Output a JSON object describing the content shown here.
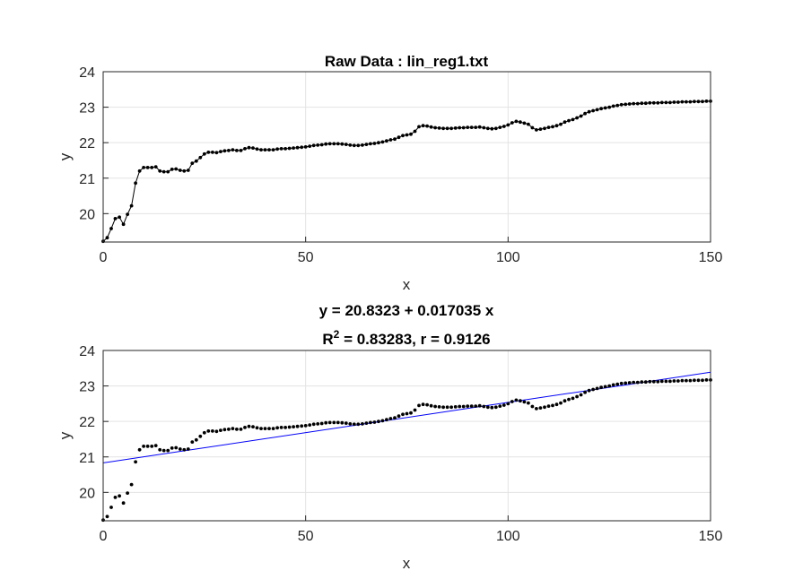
{
  "chart_data": [
    {
      "type": "line",
      "title": "Raw Data : lin_reg1.txt",
      "xlabel": "x",
      "ylabel": "y",
      "xlim": [
        0,
        150
      ],
      "ylim": [
        19.2,
        24
      ],
      "xticks": [
        "0",
        "50",
        "100",
        "150"
      ],
      "yticks": [
        "20",
        "21",
        "22",
        "23",
        "24"
      ],
      "grid": true,
      "markers": true,
      "series": [
        {
          "x": [
            0,
            1,
            2,
            3,
            4,
            5,
            6,
            7,
            8,
            9,
            10,
            11,
            12,
            13,
            14,
            15,
            16,
            17,
            18,
            19,
            20,
            21,
            22,
            23,
            24,
            25,
            26,
            27,
            28,
            29,
            30,
            31,
            32,
            33,
            34,
            35,
            36,
            37,
            38,
            39,
            40,
            41,
            42,
            43,
            44,
            45,
            46,
            47,
            48,
            49,
            50,
            51,
            52,
            53,
            54,
            55,
            56,
            57,
            58,
            59,
            60,
            61,
            62,
            63,
            64,
            65,
            66,
            67,
            68,
            69,
            70,
            71,
            72,
            73,
            74,
            75,
            76,
            77,
            78,
            79,
            80,
            81,
            82,
            83,
            84,
            85,
            86,
            87,
            88,
            89,
            90,
            91,
            92,
            93,
            94,
            95,
            96,
            97,
            98,
            99,
            100,
            101,
            102,
            103,
            104,
            105,
            106,
            107,
            108,
            109,
            110,
            111,
            112,
            113,
            114,
            115,
            116,
            117,
            118,
            119,
            120,
            121,
            122,
            123,
            124,
            125,
            126,
            127,
            128,
            129,
            130,
            131,
            132,
            133,
            134,
            135,
            136,
            137,
            138,
            139,
            140,
            141,
            142,
            143,
            144,
            145,
            146,
            147,
            148,
            149,
            150
          ],
          "y": [
            19.22,
            19.32,
            19.58,
            19.86,
            19.9,
            19.7,
            19.98,
            20.22,
            20.86,
            21.2,
            21.3,
            21.3,
            21.3,
            21.32,
            21.2,
            21.18,
            21.18,
            21.25,
            21.26,
            21.22,
            21.2,
            21.22,
            21.42,
            21.48,
            21.58,
            21.68,
            21.73,
            21.73,
            21.72,
            21.75,
            21.77,
            21.78,
            21.8,
            21.78,
            21.78,
            21.83,
            21.86,
            21.85,
            21.82,
            21.8,
            21.8,
            21.8,
            21.8,
            21.82,
            21.83,
            21.83,
            21.84,
            21.85,
            21.86,
            21.87,
            21.88,
            21.9,
            21.92,
            21.93,
            21.94,
            21.96,
            21.97,
            21.97,
            21.97,
            21.96,
            21.95,
            21.93,
            21.92,
            21.92,
            21.93,
            21.95,
            21.97,
            21.98,
            22,
            22.02,
            22.05,
            22.08,
            22.1,
            22.15,
            22.2,
            22.22,
            22.24,
            22.32,
            22.45,
            22.48,
            22.47,
            22.44,
            22.42,
            22.41,
            22.4,
            22.4,
            22.4,
            22.41,
            22.42,
            22.42,
            22.43,
            22.43,
            22.43,
            22.44,
            22.42,
            22.4,
            22.39,
            22.4,
            22.43,
            22.46,
            22.5,
            22.56,
            22.6,
            22.58,
            22.55,
            22.52,
            22.42,
            22.36,
            22.38,
            22.4,
            22.43,
            22.45,
            22.48,
            22.52,
            22.58,
            22.62,
            22.65,
            22.7,
            22.75,
            22.82,
            22.87,
            22.9,
            22.93,
            22.96,
            22.98,
            23,
            23.03,
            23.05,
            23.07,
            23.08,
            23.09,
            23.1,
            23.1,
            23.11,
            23.11,
            23.12,
            23.12,
            23.12,
            23.13,
            23.13,
            23.13,
            23.14,
            23.14,
            23.15,
            23.15,
            23.15,
            23.16,
            23.16,
            23.16,
            23.17,
            23.17
          ]
        }
      ]
    },
    {
      "type": "scatter",
      "title": "y = 20.8323 + 0.017035 x",
      "subtitle": "R2 = 0.83283, r = 0.9126",
      "subtitle_parts": {
        "base": "R",
        "sup": "2",
        "rest": " = 0.83283, r = 0.9126"
      },
      "xlabel": "x",
      "ylabel": "y",
      "xlim": [
        0,
        150
      ],
      "ylim": [
        19.2,
        24
      ],
      "xticks": [
        "0",
        "50",
        "100",
        "150"
      ],
      "yticks": [
        "20",
        "21",
        "22",
        "23",
        "24"
      ],
      "grid": true,
      "fit": {
        "intercept": 20.8323,
        "slope": 0.017035,
        "color": "#0000ff"
      },
      "point_color": "#000000"
    }
  ]
}
